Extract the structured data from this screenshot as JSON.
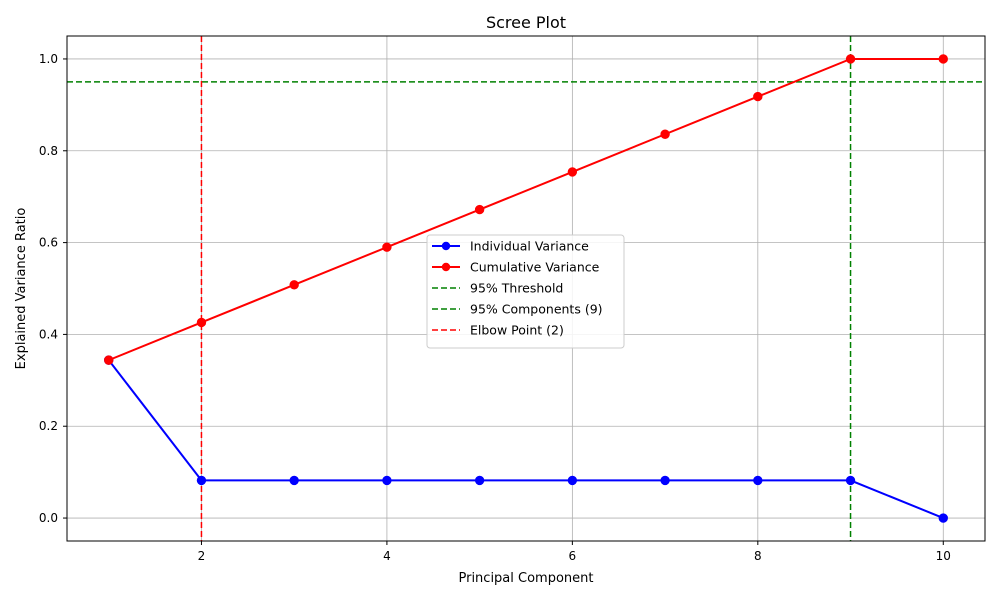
{
  "chart_data": {
    "type": "line",
    "title": "Scree Plot",
    "xlabel": "Principal Component",
    "ylabel": "Explained Variance Ratio",
    "xlim": [
      0.55,
      10.45
    ],
    "ylim": [
      -0.05,
      1.05
    ],
    "xticks": [
      2,
      4,
      6,
      8,
      10
    ],
    "xtick_labels": [
      "2",
      "4",
      "6",
      "8",
      "10"
    ],
    "yticks": [
      0.0,
      0.2,
      0.4,
      0.6,
      0.8,
      1.0
    ],
    "ytick_labels": [
      "0.0",
      "0.2",
      "0.4",
      "0.6",
      "0.8",
      "1.0"
    ],
    "grid": true,
    "legend_position": "center",
    "x": [
      1,
      2,
      3,
      4,
      5,
      6,
      7,
      8,
      9,
      10
    ],
    "series": [
      {
        "name": "Individual Variance",
        "color": "#0000ff",
        "marker": "circle",
        "values": [
          0.344,
          0.082,
          0.082,
          0.082,
          0.082,
          0.082,
          0.082,
          0.082,
          0.082,
          0.0
        ]
      },
      {
        "name": "Cumulative Variance",
        "color": "#ff0000",
        "marker": "circle",
        "values": [
          0.344,
          0.426,
          0.508,
          0.59,
          0.672,
          0.754,
          0.836,
          0.918,
          1.0,
          1.0
        ]
      }
    ],
    "reference_lines": [
      {
        "name": "95% Threshold",
        "orientation": "horizontal",
        "value": 0.95,
        "color": "#008000",
        "style": "dashed"
      },
      {
        "name": "95% Components (9)",
        "orientation": "vertical",
        "value": 9,
        "color": "#008000",
        "style": "dashed"
      },
      {
        "name": "Elbow Point (2)",
        "orientation": "vertical",
        "value": 2,
        "color": "#ff0000",
        "style": "dashed"
      }
    ]
  }
}
